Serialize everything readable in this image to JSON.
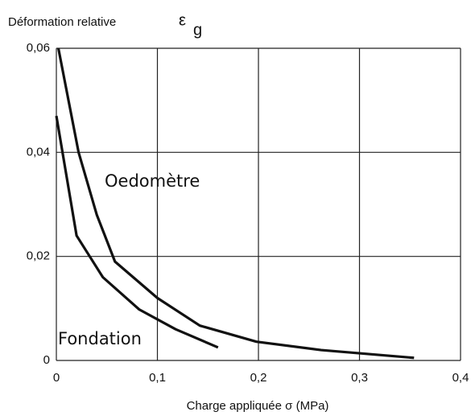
{
  "chart_data": {
    "type": "line",
    "ylabel": "Déformation relative",
    "ysymbol": "ε",
    "ysub": "g",
    "xlabel": "Charge appliquée  σ  (MPa)",
    "series": [
      {
        "name": "Oedomètre",
        "color": "#111111",
        "x": [
          0.002,
          0.022,
          0.04,
          0.058,
          0.1,
          0.142,
          0.198,
          0.262,
          0.354
        ],
        "values": [
          0.06,
          0.04,
          0.028,
          0.019,
          0.012,
          0.0067,
          0.0036,
          0.002,
          0.0005
        ]
      },
      {
        "name": "Fondation",
        "color": "#111111",
        "x": [
          0.0,
          0.02,
          0.046,
          0.082,
          0.118,
          0.16
        ],
        "values": [
          0.047,
          0.024,
          0.016,
          0.0098,
          0.006,
          0.0025
        ]
      }
    ],
    "xlim": [
      0,
      0.4
    ],
    "xticks": [
      0,
      {
        "value": 0.1,
        "label": "0,1"
      },
      {
        "value": 0.2,
        "label": "0,2"
      },
      {
        "value": 0.3,
        "label": "0,3"
      },
      {
        "value": 0.4,
        "label": "0,4"
      }
    ],
    "ylim": [
      0,
      0.06
    ],
    "yticks": [
      0,
      {
        "value": 0.02,
        "label": "0,02"
      },
      {
        "value": 0.04,
        "label": "0,04"
      },
      {
        "value": 0.06,
        "label": "0,06"
      }
    ],
    "grid": true
  }
}
